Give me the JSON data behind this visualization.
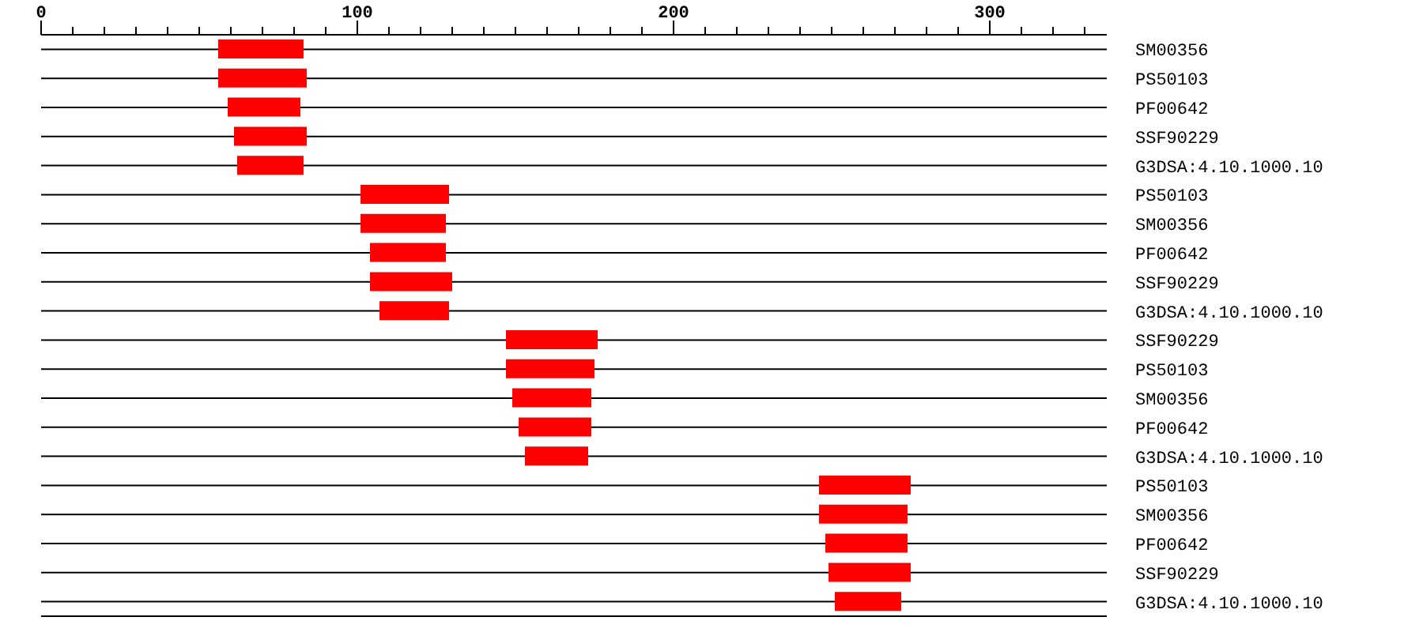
{
  "chart_data": {
    "type": "bar",
    "orientation": "horizontal",
    "color": "#ff0000",
    "grid": "y",
    "categories": [
      "SM00356",
      "PS50103",
      "PF00642",
      "SSF90229",
      "G3DSA:4.10.1000.10",
      "PS50103",
      "SM00356",
      "PF00642",
      "SSF90229",
      "G3DSA:4.10.1000.10",
      "SSF90229",
      "PS50103",
      "SM00356",
      "PF00642",
      "G3DSA:4.10.1000.10",
      "PS50103",
      "SM00356",
      "PF00642",
      "SSF90229",
      "G3DSA:4.10.1000.10"
    ],
    "base": [
      56,
      56,
      59,
      61,
      62,
      101,
      101,
      104,
      104,
      107,
      147,
      147,
      149,
      151,
      153,
      246,
      246,
      248,
      249,
      251
    ],
    "values": [
      27,
      28,
      23,
      23,
      21,
      28,
      27,
      24,
      26,
      22,
      29,
      28,
      25,
      23,
      20,
      29,
      28,
      26,
      26,
      21
    ],
    "xlim": [
      0,
      337
    ],
    "xticks": [
      0,
      {
        "value": 10,
        "label": null
      },
      {
        "value": 20,
        "label": null
      },
      {
        "value": 30,
        "label": null
      },
      {
        "value": 40,
        "label": null
      },
      {
        "value": 50,
        "label": null
      },
      {
        "value": 60,
        "label": null
      },
      {
        "value": 70,
        "label": null
      },
      {
        "value": 80,
        "label": null
      },
      {
        "value": 90,
        "label": null
      },
      100,
      {
        "value": 110,
        "label": null
      },
      {
        "value": 120,
        "label": null
      },
      {
        "value": 130,
        "label": null
      },
      {
        "value": 140,
        "label": null
      },
      {
        "value": 150,
        "label": null
      },
      {
        "value": 160,
        "label": null
      },
      {
        "value": 170,
        "label": null
      },
      {
        "value": 180,
        "label": null
      },
      {
        "value": 190,
        "label": null
      },
      200,
      {
        "value": 210,
        "label": null
      },
      {
        "value": 220,
        "label": null
      },
      {
        "value": 230,
        "label": null
      },
      {
        "value": 240,
        "label": null
      },
      {
        "value": 250,
        "label": null
      },
      {
        "value": 260,
        "label": null
      },
      {
        "value": 270,
        "label": null
      },
      {
        "value": 280,
        "label": null
      },
      {
        "value": 290,
        "label": null
      },
      300,
      {
        "value": 310,
        "label": null
      },
      {
        "value": 320,
        "label": null
      },
      {
        "value": 330,
        "label": null
      }
    ]
  }
}
